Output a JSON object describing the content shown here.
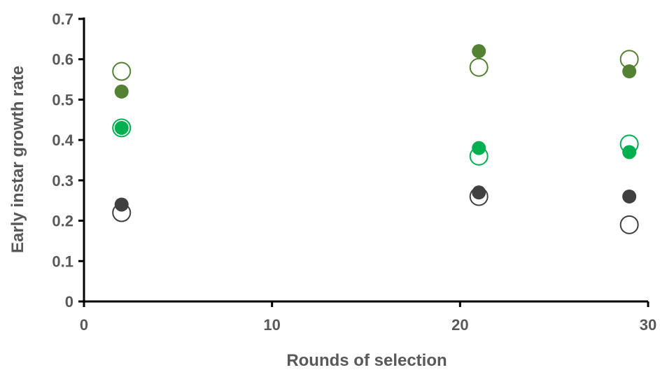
{
  "chart_data": {
    "type": "scatter",
    "title": "",
    "xlabel": "Rounds of selection",
    "ylabel": "Early instar growth rate",
    "xlim": [
      0,
      30
    ],
    "ylim": [
      0,
      0.7
    ],
    "x_ticks": [
      0,
      10,
      20,
      30
    ],
    "x_tick_labels": [
      "0",
      "10",
      "20",
      "30"
    ],
    "y_ticks": [
      0,
      0.1,
      0.2,
      0.3,
      0.4,
      0.5,
      0.6,
      0.7
    ],
    "y_tick_labels": [
      "0",
      "0.1",
      "0.2",
      "0.3",
      "0.4",
      "0.5",
      "0.6",
      "0.7"
    ],
    "grid": false,
    "legend": "none",
    "series": [
      {
        "marker": "open",
        "color": "#548235",
        "x": [
          2,
          21,
          29
        ],
        "y": [
          0.57,
          0.58,
          0.6
        ]
      },
      {
        "marker": "filled",
        "color": "#548235",
        "x": [
          2,
          21,
          29
        ],
        "y": [
          0.52,
          0.62,
          0.57
        ]
      },
      {
        "marker": "open",
        "color": "#00B050",
        "x": [
          2,
          21,
          29
        ],
        "y": [
          0.43,
          0.36,
          0.39
        ]
      },
      {
        "marker": "filled",
        "color": "#00B050",
        "x": [
          2,
          21,
          29
        ],
        "y": [
          0.43,
          0.38,
          0.37
        ]
      },
      {
        "marker": "open",
        "color": "#404040",
        "x": [
          2,
          21,
          29
        ],
        "y": [
          0.22,
          0.26,
          0.19
        ]
      },
      {
        "marker": "filled",
        "color": "#404040",
        "x": [
          2,
          21,
          29
        ],
        "y": [
          0.24,
          0.27,
          0.26
        ]
      }
    ]
  }
}
